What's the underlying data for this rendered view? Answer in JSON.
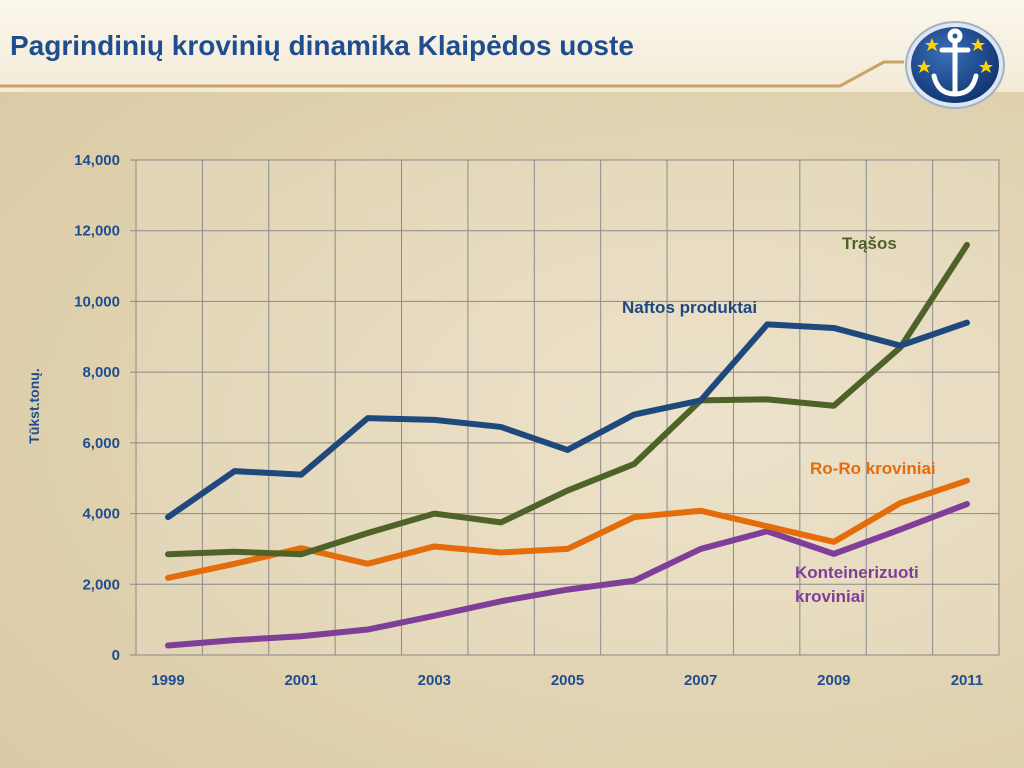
{
  "slide": {
    "title": "Pagrindinių krovinių dinamika Klaipėdos uoste",
    "accent_color": "#1f4e8f",
    "rule_color": "#c9a466"
  },
  "logo": {
    "icon": "anchor-stars-emblem-icon"
  },
  "chart_data": {
    "type": "line",
    "title": "",
    "xlabel": "",
    "ylabel": "Tūkst.tonų.",
    "x": [
      1999,
      2000,
      2001,
      2002,
      2003,
      2004,
      2005,
      2006,
      2007,
      2008,
      2009,
      2010,
      2011
    ],
    "xtick_labels": [
      "1999",
      "2001",
      "2003",
      "2005",
      "2007",
      "2009",
      "2011"
    ],
    "ylim": [
      0,
      14000
    ],
    "ytick_labels": [
      "0",
      "2,000",
      "4,000",
      "6,000",
      "8,000",
      "10,000",
      "12,000",
      "14,000"
    ],
    "grid": true,
    "series": [
      {
        "name": "Naftos produktai",
        "color": "#1f497d",
        "values": [
          3900,
          5200,
          5100,
          6700,
          6650,
          6450,
          5800,
          6800,
          7200,
          9350,
          9250,
          8750,
          9400
        ]
      },
      {
        "name": "Trąšos",
        "color": "#4f6228",
        "values": [
          2850,
          2920,
          2850,
          3450,
          4000,
          3750,
          4650,
          5400,
          7200,
          7230,
          7050,
          8700,
          11600
        ]
      },
      {
        "name": "Ro-Ro kroviniai",
        "color": "#e46c0a",
        "values": [
          2180,
          2580,
          3020,
          2580,
          3070,
          2900,
          3000,
          3900,
          4080,
          3640,
          3200,
          4300,
          4930
        ]
      },
      {
        "name": "Konteinerizuoti kroviniai",
        "name_lines": [
          "Konteinerizuoti",
          "kroviniai"
        ],
        "color": "#7f3f98",
        "values": [
          270,
          420,
          530,
          720,
          1110,
          1520,
          1850,
          2100,
          3000,
          3500,
          2860,
          3550,
          4270
        ]
      }
    ]
  }
}
